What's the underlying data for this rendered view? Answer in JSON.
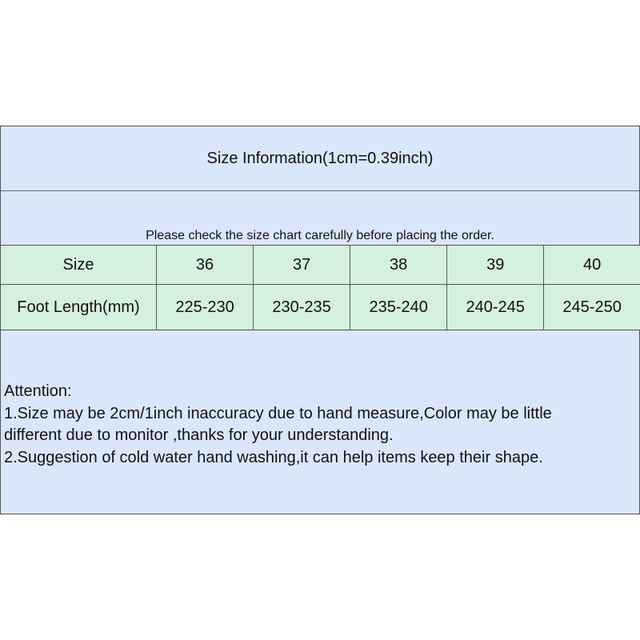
{
  "title": "Size Information(1cm=0.39inch)",
  "subtitle": "Please check the size chart carefully before placing the order.",
  "table": {
    "rows": [
      [
        "Size",
        "36",
        "37",
        "38",
        "39",
        "40"
      ],
      [
        "Foot Length(mm)",
        "225-230",
        "230-235",
        "235-240",
        "240-245",
        "245-250"
      ]
    ]
  },
  "attention": {
    "heading": "Attention:",
    "lines": [
      "1.Size may be 2cm/1inch inaccuracy due to hand measure,Color may be little",
      "different due to monitor ,thanks for your understanding.",
      "2.Suggestion of cold water hand washing,it can help items keep their shape."
    ]
  },
  "colors": {
    "header_bg": "#dae6fa",
    "table_bg": "#d5f0dc",
    "border": "#555555"
  }
}
